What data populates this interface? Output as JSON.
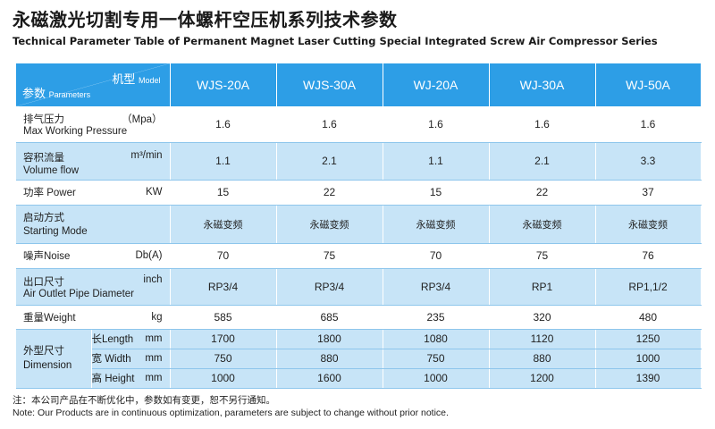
{
  "title_cn": "永磁激光切割专用一体螺杆空压机系列技术参数",
  "title_en": "Technical Parameter Table of Permanent Magnet Laser Cutting Special Integrated Screw Air Compressor Series",
  "header": {
    "model_cn": "机型",
    "model_en": "Model",
    "param_cn": "参数",
    "param_en": "Parameters",
    "models": [
      "WJS-20A",
      "WJS-30A",
      "WJ-20A",
      "WJ-30A",
      "WJ-50A"
    ]
  },
  "rows": {
    "pressure": {
      "cn": "排气压力",
      "en": "Max Working Pressure",
      "unit": "（Mpa）",
      "values": [
        "1.6",
        "1.6",
        "1.6",
        "1.6",
        "1.6"
      ]
    },
    "flow": {
      "cn": "容积流量",
      "en": "Volume flow",
      "unit": "m³/min",
      "values": [
        "1.1",
        "2.1",
        "1.1",
        "2.1",
        "3.3"
      ]
    },
    "power": {
      "label": "功率 Power",
      "unit": "KW",
      "values": [
        "15",
        "22",
        "15",
        "22",
        "37"
      ]
    },
    "start": {
      "cn": "启动方式",
      "en": "Starting Mode",
      "values": [
        "永磁变频",
        "永磁变频",
        "永磁变频",
        "永磁变频",
        "永磁变频"
      ]
    },
    "noise": {
      "label": "噪声Noise",
      "unit": "Db(A)",
      "values": [
        "70",
        "75",
        "70",
        "75",
        "76"
      ]
    },
    "outlet": {
      "cn": "出口尺寸",
      "en": "Air Outlet Pipe Diameter",
      "unit": "inch",
      "values": [
        "RP3/4",
        "RP3/4",
        "RP3/4",
        "RP1",
        "RP1,1/2"
      ]
    },
    "weight": {
      "label": "重量Weight",
      "unit": "kg",
      "values": [
        "585",
        "685",
        "235",
        "320",
        "480"
      ]
    },
    "dimension": {
      "cn": "外型尺寸",
      "en": "Dimension",
      "length": {
        "label": "长Length",
        "unit": "mm",
        "values": [
          "1700",
          "1800",
          "1080",
          "1120",
          "1250"
        ]
      },
      "width": {
        "label": "宽 Width",
        "unit": "mm",
        "values": [
          "750",
          "880",
          "750",
          "880",
          "1000"
        ]
      },
      "height": {
        "label": "高 Height",
        "unit": "mm",
        "values": [
          "1000",
          "1600",
          "1000",
          "1200",
          "1390"
        ]
      }
    }
  },
  "note_cn": "注：本公司产品在不断优化中，参数如有变更，恕不另行通知。",
  "note_en": "Note: Our Products are in continuous optimization, parameters are subject to change without prior notice."
}
